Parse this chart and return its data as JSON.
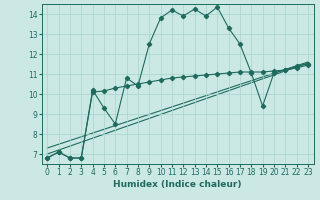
{
  "xlabel": "Humidex (Indice chaleur)",
  "background_color": "#cce8e4",
  "line_color": "#1e6b5e",
  "xlim": [
    -0.5,
    23.5
  ],
  "ylim": [
    6.5,
    14.5
  ],
  "xticks": [
    0,
    1,
    2,
    3,
    4,
    5,
    6,
    7,
    8,
    9,
    10,
    11,
    12,
    13,
    14,
    15,
    16,
    17,
    18,
    19,
    20,
    21,
    22,
    23
  ],
  "yticks": [
    7,
    8,
    9,
    10,
    11,
    12,
    13,
    14
  ],
  "main_x": [
    0,
    1,
    2,
    3,
    4,
    5,
    6,
    7,
    8,
    9,
    10,
    11,
    12,
    13,
    14,
    15,
    16,
    17,
    18,
    19,
    20,
    21,
    22,
    23
  ],
  "main_y": [
    6.8,
    7.1,
    6.8,
    6.8,
    10.2,
    9.3,
    8.5,
    10.8,
    10.4,
    12.5,
    13.8,
    14.2,
    13.9,
    14.25,
    13.9,
    14.35,
    13.3,
    12.5,
    11.05,
    9.4,
    11.05,
    11.2,
    11.4,
    11.5
  ],
  "plateau_x": [
    0,
    1,
    2,
    3,
    4,
    5,
    6,
    7,
    8,
    9,
    10,
    11,
    12,
    13,
    14,
    15,
    16,
    17,
    18,
    19,
    20,
    21,
    22,
    23
  ],
  "plateau_y": [
    6.8,
    7.1,
    6.8,
    6.8,
    10.1,
    10.15,
    10.3,
    10.4,
    10.5,
    10.6,
    10.7,
    10.8,
    10.85,
    10.9,
    10.95,
    11.0,
    11.05,
    11.1,
    11.1,
    11.1,
    11.15,
    11.2,
    11.3,
    11.45
  ],
  "linear1_y_start": 7.0,
  "linear1_y_end": 11.55,
  "linear2_y_start": 7.3,
  "linear2_y_end": 11.6,
  "grid_color": "#a8d4ce",
  "marker_size": 2.2,
  "linewidth": 0.8
}
